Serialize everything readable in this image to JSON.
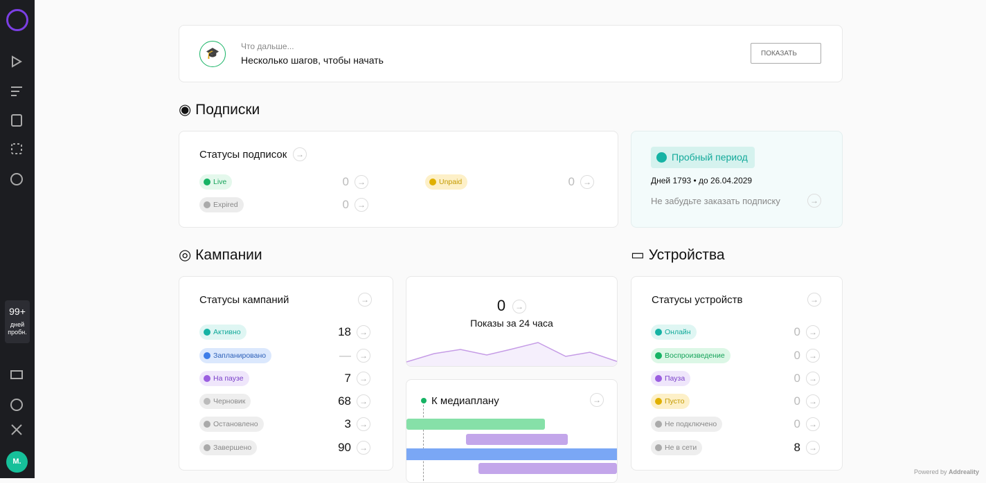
{
  "sidebar": {
    "badge": "99+",
    "badge_label": "дней пробн.",
    "avatar": "M."
  },
  "onboarding": {
    "subtitle": "Что дальше...",
    "title": "Несколько шагов, чтобы начать",
    "button": "ПОКАЗАТЬ"
  },
  "subscriptions": {
    "heading": "Подписки",
    "card_title": "Статусы подписок",
    "statuses": [
      {
        "label": "Live",
        "count": 0
      },
      {
        "label": "Unpaid",
        "count": 0
      },
      {
        "label": "Expired",
        "count": 0
      }
    ],
    "trial": {
      "title": "Пробный период",
      "days": "Дней 1793 • до 26.04.2029",
      "reminder": "Не забудьте заказать подписку"
    }
  },
  "campaigns": {
    "heading": "Кампании",
    "card_title": "Статусы кампаний",
    "statuses": [
      {
        "label": "Активно",
        "count": 18
      },
      {
        "label": "Запланировано",
        "count": "—"
      },
      {
        "label": "На паузе",
        "count": 7
      },
      {
        "label": "Черновик",
        "count": 68
      },
      {
        "label": "Остановлено",
        "count": 3
      },
      {
        "label": "Завершено",
        "count": 90
      }
    ],
    "impressions": {
      "count": 0,
      "label": "Показы за 24 часа"
    },
    "mediaplan": "К медиаплану"
  },
  "devices": {
    "heading": "Устройства",
    "card_title": "Статусы устройств",
    "statuses": [
      {
        "label": "Онлайн",
        "count": 0
      },
      {
        "label": "Воспроизведение",
        "count": 0
      },
      {
        "label": "Пауза",
        "count": 0
      },
      {
        "label": "Пусто",
        "count": 0
      },
      {
        "label": "Не подключено",
        "count": 0
      },
      {
        "label": "Не в сети",
        "count": 8
      }
    ]
  },
  "footer": {
    "powered": "Powered by",
    "brand": "Addreality"
  }
}
